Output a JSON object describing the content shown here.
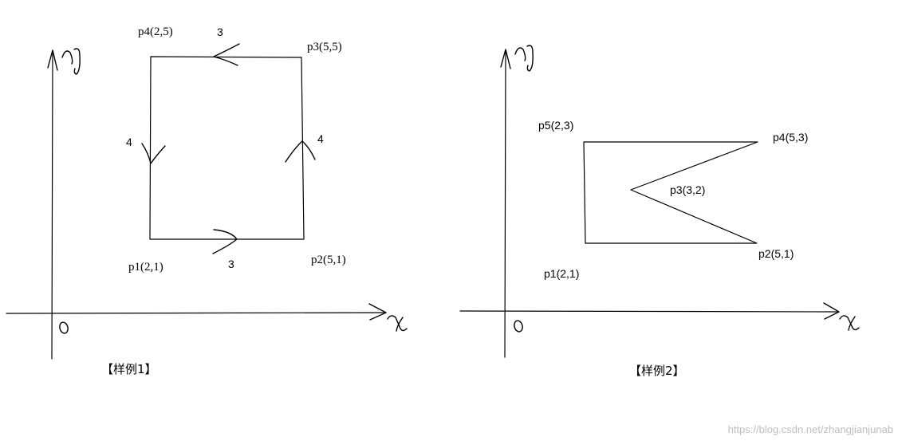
{
  "diagram1": {
    "caption": "【样例1】",
    "origin_label": "o",
    "x_axis_label": "x",
    "y_axis_label": "y",
    "points": [
      {
        "label": "p1(2,1)"
      },
      {
        "label": "p2(5,1)"
      },
      {
        "label": "p3(5,5)"
      },
      {
        "label": "p4(2,5)"
      }
    ],
    "edge_labels": {
      "bottom": "3",
      "right": "4",
      "top": "3",
      "left": "4"
    }
  },
  "diagram2": {
    "caption": "【样例2】",
    "origin_label": "o",
    "x_axis_label": "x",
    "y_axis_label": "y",
    "points": [
      {
        "label": "p1(2,1)"
      },
      {
        "label": "p2(5,1)"
      },
      {
        "label": "p3(3,2)"
      },
      {
        "label": "p4(5,3)"
      },
      {
        "label": "p5(2,3)"
      }
    ]
  },
  "watermark": "https://blog.csdn.net/zhangjianjunab"
}
